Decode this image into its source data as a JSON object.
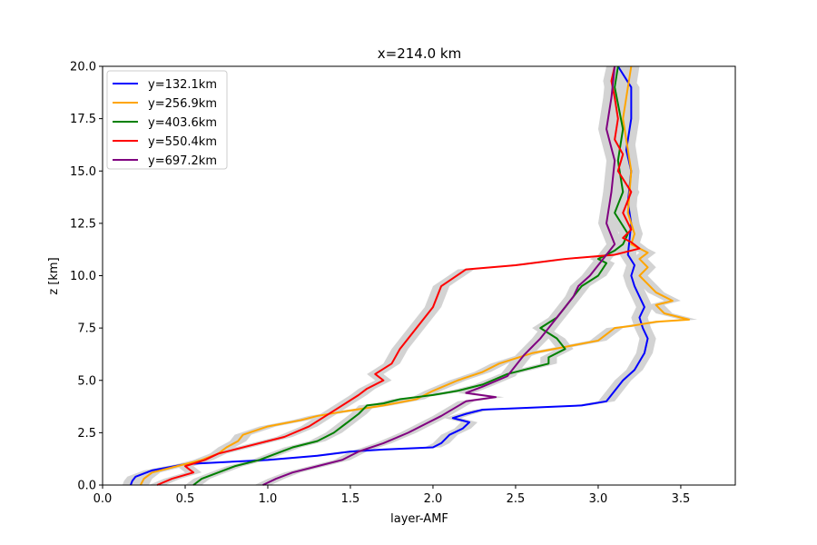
{
  "chart_data": {
    "type": "line",
    "title": "x=214.0 km",
    "xlabel": "layer-AMF",
    "ylabel": "z [km]",
    "xlim": [
      0.0,
      3.83
    ],
    "ylim": [
      0.0,
      20.0
    ],
    "xticks": [
      0.0,
      0.5,
      1.0,
      1.5,
      2.0,
      2.5,
      3.0,
      3.5
    ],
    "xtick_labels": [
      "0.0",
      "0.5",
      "1.0",
      "1.5",
      "2.0",
      "2.5",
      "3.0",
      "3.5"
    ],
    "yticks": [
      0.0,
      2.5,
      5.0,
      7.5,
      10.0,
      12.5,
      15.0,
      17.5,
      20.0
    ],
    "ytick_labels": [
      "0.0",
      "2.5",
      "5.0",
      "7.5",
      "10.0",
      "12.5",
      "15.0",
      "17.5",
      "20.0"
    ],
    "legend_position": "upper-left",
    "band_color": "#d3d3d3",
    "series": [
      {
        "name": "y=132.1km",
        "color": "#0000ff",
        "x": [
          0.17,
          0.18,
          0.2,
          0.3,
          0.5,
          1.0,
          1.3,
          1.5,
          1.7,
          2.0,
          2.05,
          2.1,
          2.18,
          2.22,
          2.12,
          2.2,
          2.3,
          2.6,
          2.9,
          3.05,
          3.1,
          3.15,
          3.22,
          3.28,
          3.3,
          3.27,
          3.25,
          3.28,
          3.25,
          3.22,
          3.2,
          3.22,
          3.18,
          3.2,
          3.18,
          3.2,
          3.17,
          3.2,
          3.2,
          3.12
        ],
        "y": [
          0.0,
          0.2,
          0.4,
          0.7,
          1.0,
          1.2,
          1.4,
          1.6,
          1.7,
          1.8,
          2.0,
          2.4,
          2.7,
          3.0,
          3.2,
          3.4,
          3.6,
          3.7,
          3.8,
          4.0,
          4.5,
          5.0,
          5.5,
          6.3,
          7.0,
          7.5,
          8.0,
          8.5,
          9.0,
          9.5,
          10.0,
          10.5,
          11.0,
          12.5,
          13.5,
          15.0,
          16.0,
          17.5,
          19.0,
          20.0
        ]
      },
      {
        "name": "y=256.9km",
        "color": "#ffa500",
        "x": [
          0.23,
          0.25,
          0.3,
          0.45,
          0.6,
          0.7,
          0.75,
          0.82,
          0.85,
          1.0,
          1.2,
          1.3,
          1.45,
          1.7,
          1.9,
          2.0,
          2.15,
          2.3,
          2.4,
          2.6,
          2.8,
          3.0,
          3.05,
          3.1,
          3.2,
          3.35,
          3.55,
          3.4,
          3.35,
          3.45,
          3.35,
          3.3,
          3.25,
          3.3,
          3.25,
          3.3,
          3.2,
          3.22,
          3.18,
          3.2,
          3.15,
          3.2
        ],
        "y": [
          0.0,
          0.3,
          0.6,
          0.9,
          1.2,
          1.5,
          1.8,
          2.1,
          2.4,
          2.8,
          3.1,
          3.3,
          3.5,
          3.8,
          4.1,
          4.5,
          5.0,
          5.4,
          5.8,
          6.3,
          6.6,
          6.9,
          7.2,
          7.5,
          7.6,
          7.8,
          7.9,
          8.2,
          8.6,
          8.8,
          9.2,
          9.6,
          10.0,
          10.4,
          10.8,
          11.1,
          11.5,
          12.0,
          13.0,
          15.0,
          17.5,
          20.0
        ]
      },
      {
        "name": "y=403.6km",
        "color": "#008000",
        "x": [
          0.55,
          0.6,
          0.7,
          0.8,
          0.95,
          1.05,
          1.15,
          1.3,
          1.4,
          1.45,
          1.5,
          1.55,
          1.6,
          1.7,
          1.8,
          1.9,
          2.0,
          2.15,
          2.3,
          2.45,
          2.7,
          2.7,
          2.8,
          2.75,
          2.65,
          2.75,
          2.8,
          2.85,
          2.9,
          3.0,
          3.05,
          3.0,
          3.1,
          3.15,
          3.18,
          3.1,
          3.15,
          3.12,
          3.15,
          3.1,
          3.12
        ],
        "y": [
          0.0,
          0.3,
          0.6,
          0.9,
          1.2,
          1.5,
          1.8,
          2.1,
          2.5,
          2.8,
          3.1,
          3.4,
          3.8,
          3.9,
          4.1,
          4.2,
          4.3,
          4.5,
          4.8,
          5.3,
          5.8,
          6.1,
          6.5,
          7.0,
          7.5,
          8.0,
          8.5,
          9.0,
          9.5,
          10.0,
          10.6,
          10.8,
          11.2,
          11.5,
          12.0,
          13.0,
          14.0,
          15.5,
          17.0,
          19.0,
          20.0
        ]
      },
      {
        "name": "y=550.4km",
        "color": "#ff0000",
        "x": [
          0.33,
          0.42,
          0.55,
          0.5,
          0.62,
          0.7,
          0.9,
          1.1,
          1.25,
          1.35,
          1.45,
          1.55,
          1.6,
          1.7,
          1.65,
          1.75,
          1.8,
          1.9,
          2.0,
          2.05,
          2.2,
          2.5,
          2.8,
          3.1,
          3.25,
          3.2,
          3.15,
          3.2,
          3.15,
          3.2,
          3.12,
          3.15,
          3.1,
          3.12,
          3.1,
          3.08,
          3.1
        ],
        "y": [
          0.0,
          0.3,
          0.6,
          0.9,
          1.2,
          1.5,
          1.9,
          2.3,
          2.8,
          3.3,
          3.8,
          4.3,
          4.6,
          5.0,
          5.3,
          5.8,
          6.5,
          7.5,
          8.5,
          9.5,
          10.3,
          10.5,
          10.8,
          11.0,
          11.3,
          11.6,
          11.8,
          12.2,
          13.0,
          14.0,
          15.0,
          15.8,
          16.5,
          17.5,
          18.5,
          19.3,
          20.0
        ]
      },
      {
        "name": "y=697.2km",
        "color": "#800080",
        "x": [
          0.97,
          1.05,
          1.15,
          1.3,
          1.45,
          1.55,
          1.7,
          1.85,
          1.95,
          2.05,
          2.2,
          2.38,
          2.2,
          2.3,
          2.45,
          2.5,
          2.55,
          2.6,
          2.65,
          2.7,
          2.75,
          2.8,
          2.85,
          2.88,
          2.95,
          3.0,
          3.05,
          3.1,
          3.05,
          3.08,
          3.1,
          3.05,
          3.08,
          3.1
        ],
        "y": [
          0.0,
          0.3,
          0.6,
          0.9,
          1.2,
          1.6,
          2.0,
          2.5,
          2.9,
          3.3,
          4.0,
          4.2,
          4.4,
          4.7,
          5.2,
          5.7,
          6.2,
          6.6,
          7.0,
          7.5,
          8.0,
          8.5,
          9.0,
          9.5,
          10.0,
          10.5,
          11.0,
          11.5,
          12.5,
          14.0,
          15.5,
          17.0,
          18.5,
          20.0
        ]
      }
    ]
  }
}
